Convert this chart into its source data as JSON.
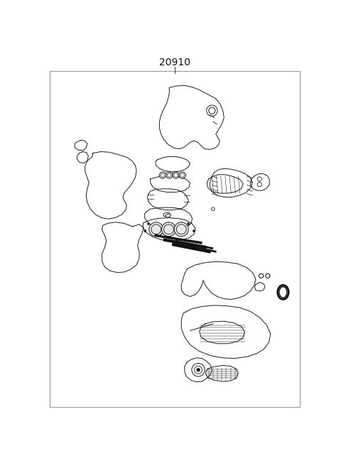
{
  "title": "20910",
  "background_color": "#ffffff",
  "line_color": "#1a1a1a",
  "border_color": "#999999",
  "figsize": [
    4.8,
    6.56
  ],
  "dpi": 100,
  "title_fontsize": 10
}
